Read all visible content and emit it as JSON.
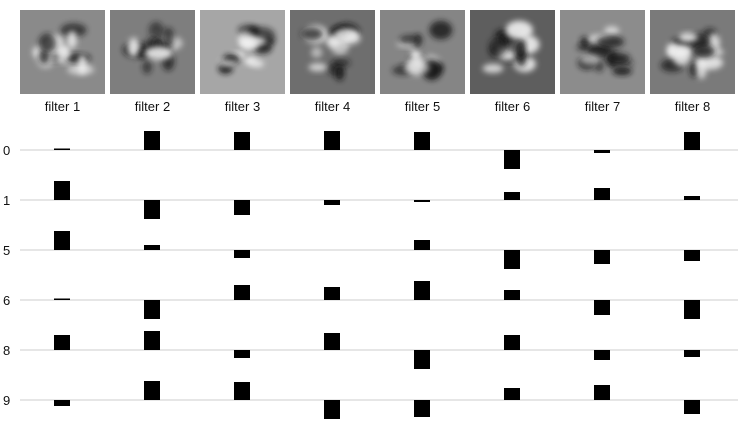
{
  "chart_data": {
    "type": "bar",
    "filters": [
      "filter 1",
      "filter 2",
      "filter 3",
      "filter 4",
      "filter 5",
      "filter 6",
      "filter 7",
      "filter 8"
    ],
    "rows": [
      "0",
      "1",
      "5",
      "6",
      "8",
      "9"
    ],
    "ylim": [
      -1,
      1
    ],
    "grid": true,
    "bar_color": "#000000",
    "values": [
      [
        0.05,
        0.95,
        0.9,
        0.95,
        0.9,
        -0.95,
        -0.15,
        0.9
      ],
      [
        0.95,
        -0.95,
        -0.75,
        -0.25,
        -0.1,
        0.4,
        0.6,
        0.2
      ],
      [
        0.95,
        0.25,
        -0.4,
        0.0,
        0.5,
        -0.95,
        -0.7,
        -0.55
      ],
      [
        0.05,
        -0.95,
        0.75,
        0.65,
        0.95,
        0.5,
        -0.75,
        -0.95
      ],
      [
        0.75,
        0.95,
        -0.4,
        0.85,
        -0.95,
        0.75,
        -0.5,
        -0.35
      ],
      [
        -0.3,
        0.95,
        0.9,
        -0.95,
        -0.85,
        0.6,
        0.75,
        -0.7
      ]
    ]
  }
}
